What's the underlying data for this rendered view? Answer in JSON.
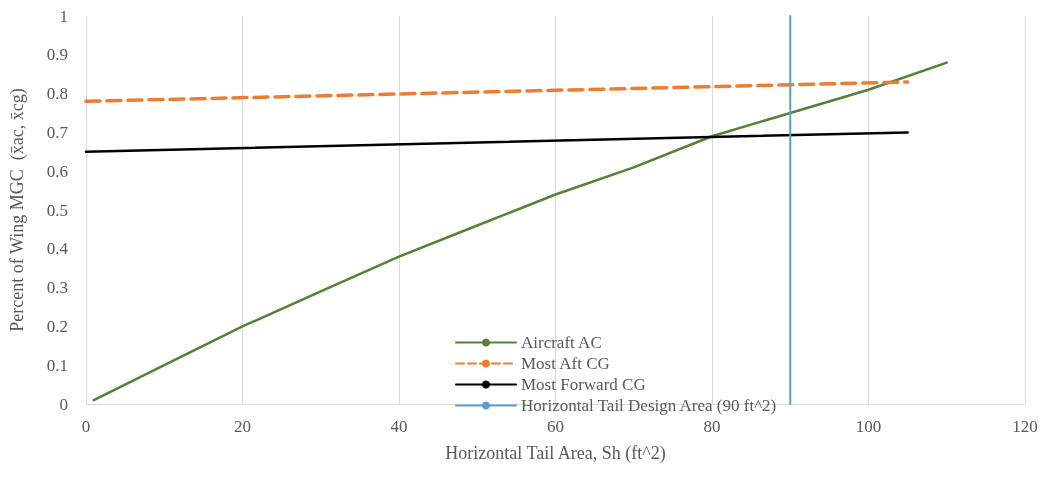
{
  "chart_data": {
    "type": "line",
    "xlabel": "Horizontal Tail Area, Sh (ft^2)",
    "ylabel": "Percent of Wing MGC  (x̄ac, x̄cg)",
    "xlim": [
      0,
      120
    ],
    "xticks": [
      0,
      20,
      40,
      60,
      80,
      100,
      120
    ],
    "ylim": [
      0,
      1
    ],
    "yticks": [
      0,
      0.1,
      0.2,
      0.3,
      0.4,
      0.5,
      0.6,
      0.7,
      0.8,
      0.9,
      1
    ],
    "grid": "x",
    "legend": "bottom",
    "marker": "none",
    "series": [
      {
        "name": "Aircraft AC",
        "color": "#548235",
        "line_style": "solid",
        "x": [
          1,
          10,
          20,
          30,
          40,
          50,
          60,
          70,
          80,
          90,
          100,
          110
        ],
        "values": [
          0.01,
          0.1,
          0.2,
          0.29,
          0.38,
          0.46,
          0.54,
          0.61,
          0.69,
          0.75,
          0.81,
          0.88
        ]
      },
      {
        "name": "Most Aft CG",
        "color": "#ed7d31",
        "line_style": "dashed",
        "x": [
          0,
          105
        ],
        "values": [
          0.78,
          0.83
        ]
      },
      {
        "name": "Most Forward CG",
        "color": "#000000",
        "line_style": "solid",
        "x": [
          0,
          105
        ],
        "values": [
          0.65,
          0.7
        ]
      },
      {
        "name": "Horizontal Tail Design Area (90 ft^2)",
        "color": "#5b9bd5",
        "line_style": "solid",
        "x": [
          90,
          90
        ],
        "values": [
          0,
          1
        ]
      }
    ]
  }
}
